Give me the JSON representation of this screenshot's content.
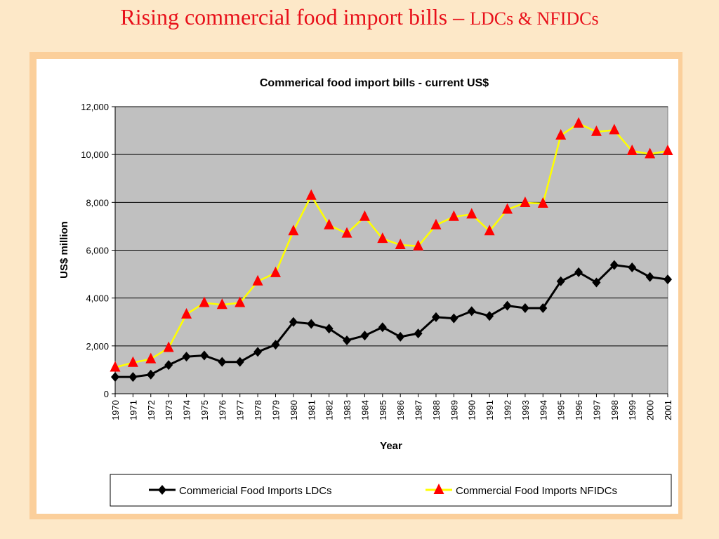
{
  "slide": {
    "title_main": "Rising commercial food import bills – ",
    "title_sub": "LDCs & NFIDCs"
  },
  "colors": {
    "background": "#fde8c8",
    "frame": "#fbcf9b",
    "title": "#e8101a",
    "plot_bg": "#c0c0c0",
    "ldc_line": "#000000",
    "nfidc_line": "#ffff00",
    "nfidc_marker": "#ff0000"
  },
  "chart_data": {
    "type": "line",
    "title": "Commerical food import bills - current US$",
    "xlabel": "Year",
    "ylabel": "US$ million",
    "ylim": [
      0,
      12000
    ],
    "yticks": [
      0,
      2000,
      4000,
      6000,
      8000,
      10000,
      12000
    ],
    "ytick_labels": [
      "0",
      "2,000",
      "4,000",
      "6,000",
      "8,000",
      "10,000",
      "12,000"
    ],
    "grid": "horizontal",
    "legend_position": "bottom",
    "categories": [
      "1970",
      "1971",
      "1972",
      "1973",
      "1974",
      "1975",
      "1976",
      "1977",
      "1978",
      "1979",
      "1980",
      "1981",
      "1982",
      "1983",
      "1984",
      "1985",
      "1986",
      "1987",
      "1988",
      "1989",
      "1990",
      "1991",
      "1992",
      "1993",
      "1994",
      "1995",
      "1996",
      "1997",
      "1998",
      "1999",
      "2000",
      "2001"
    ],
    "series": [
      {
        "name": "Commericial Food Imports LDCs",
        "marker": "diamond",
        "line_color": "#000000",
        "marker_color": "#000000",
        "values": [
          700,
          700,
          800,
          1200,
          1550,
          1600,
          1330,
          1330,
          1750,
          2050,
          3000,
          2920,
          2720,
          2230,
          2430,
          2780,
          2380,
          2520,
          3200,
          3150,
          3450,
          3250,
          3680,
          3580,
          3580,
          4700,
          5080,
          4650,
          5380,
          5280,
          4880,
          4780
        ]
      },
      {
        "name": "Commercial Food Imports NFIDCs",
        "marker": "triangle",
        "line_color": "#ffff00",
        "marker_color": "#ff0000",
        "values": [
          1100,
          1300,
          1450,
          1920,
          3320,
          3800,
          3720,
          3800,
          4700,
          5050,
          6800,
          8280,
          7050,
          6700,
          7400,
          6480,
          6220,
          6170,
          7050,
          7400,
          7500,
          6800,
          7700,
          7980,
          7950,
          10800,
          11300,
          10950,
          11020,
          10150,
          10020,
          10150
        ]
      }
    ]
  }
}
